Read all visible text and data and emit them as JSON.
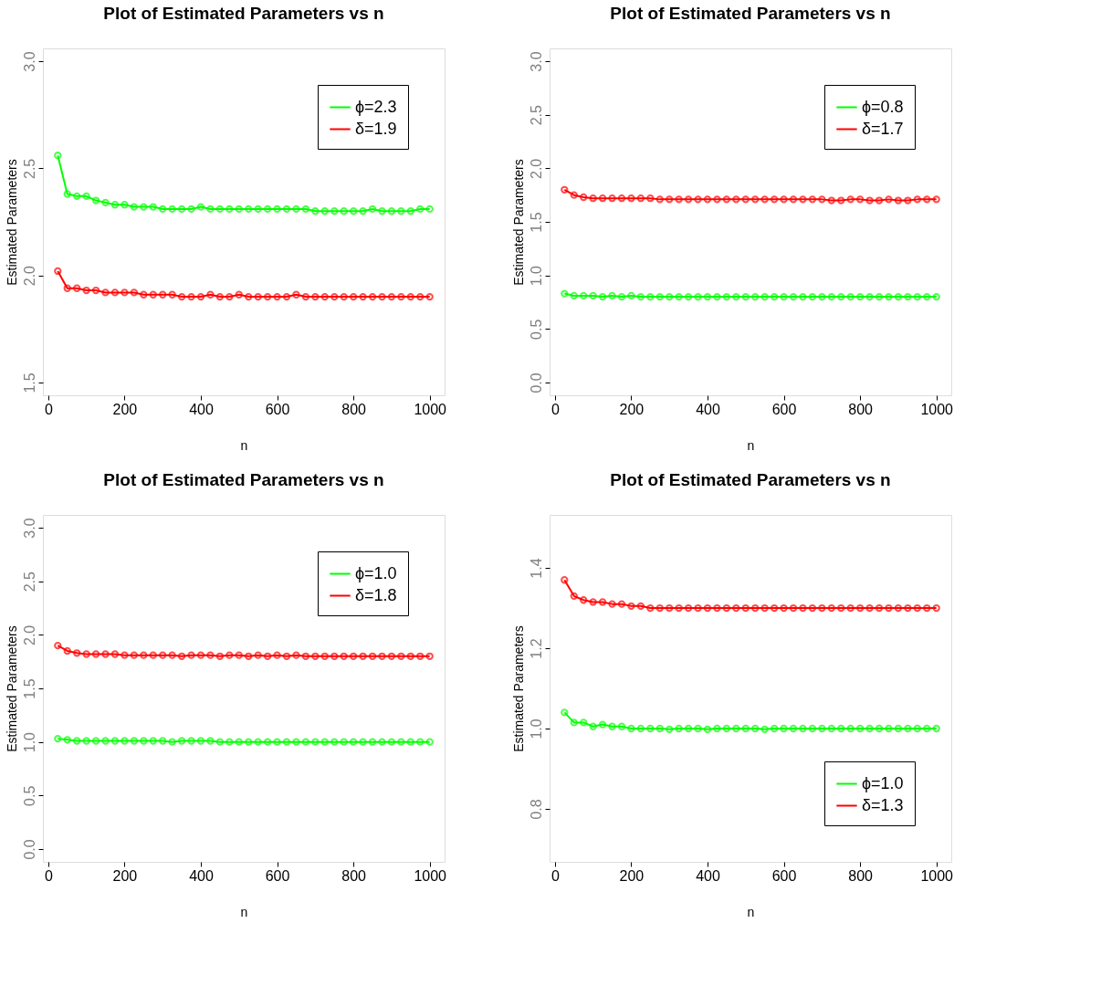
{
  "chart_data": [
    {
      "type": "line",
      "title": "Plot of Estimated Parameters vs n",
      "xlabel": "n",
      "ylabel": "Estimated Parameters",
      "x": [
        25,
        50,
        75,
        100,
        125,
        150,
        175,
        200,
        225,
        250,
        275,
        300,
        325,
        350,
        375,
        400,
        425,
        450,
        475,
        500,
        525,
        550,
        575,
        600,
        625,
        650,
        675,
        700,
        725,
        750,
        775,
        800,
        825,
        850,
        875,
        900,
        925,
        950,
        975,
        1000
      ],
      "xlim": [
        -14,
        1039
      ],
      "xticks": [
        0,
        200,
        400,
        600,
        800,
        1000
      ],
      "ylim": [
        1.44,
        3.06
      ],
      "yticks": [
        1.5,
        {
          "value": 2,
          "label": "2.0"
        },
        2.5,
        {
          "value": 3,
          "label": "3.0"
        }
      ],
      "legend": "top right",
      "marker": "circle",
      "line_style": "solid",
      "grid": false,
      "series": [
        {
          "name": "ϕ=2.3",
          "color": "#00ff00",
          "values": [
            2.56,
            2.38,
            2.37,
            2.37,
            2.35,
            2.34,
            2.33,
            2.33,
            2.32,
            2.32,
            2.32,
            2.31,
            2.31,
            2.31,
            2.31,
            2.32,
            2.31,
            2.31,
            2.31,
            2.31,
            2.31,
            2.31,
            2.31,
            2.31,
            2.31,
            2.31,
            2.31,
            2.3,
            2.3,
            2.3,
            2.3,
            2.3,
            2.3,
            2.31,
            2.3,
            2.3,
            2.3,
            2.3,
            2.31,
            2.31
          ]
        },
        {
          "name": "δ=1.9",
          "color": "#ff0000",
          "values": [
            2.02,
            1.94,
            1.94,
            1.93,
            1.93,
            1.92,
            1.92,
            1.92,
            1.92,
            1.91,
            1.91,
            1.91,
            1.91,
            1.9,
            1.9,
            1.9,
            1.91,
            1.9,
            1.9,
            1.91,
            1.9,
            1.9,
            1.9,
            1.9,
            1.9,
            1.91,
            1.9,
            1.9,
            1.9,
            1.9,
            1.9,
            1.9,
            1.9,
            1.9,
            1.9,
            1.9,
            1.9,
            1.9,
            1.9,
            1.9
          ]
        }
      ]
    },
    {
      "type": "line",
      "title": "Plot of Estimated Parameters vs n",
      "xlabel": "n",
      "ylabel": "Estimated Parameters",
      "x": [
        25,
        50,
        75,
        100,
        125,
        150,
        175,
        200,
        225,
        250,
        275,
        300,
        325,
        350,
        375,
        400,
        425,
        450,
        475,
        500,
        525,
        550,
        575,
        600,
        625,
        650,
        675,
        700,
        725,
        750,
        775,
        800,
        825,
        850,
        875,
        900,
        925,
        950,
        975,
        1000
      ],
      "xlim": [
        -14,
        1039
      ],
      "xticks": [
        0,
        200,
        400,
        600,
        800,
        1000
      ],
      "ylim": [
        -0.12,
        3.12
      ],
      "yticks": [
        {
          "value": 0,
          "label": "0.0"
        },
        0.5,
        {
          "value": 1,
          "label": "1.0"
        },
        1.5,
        {
          "value": 2,
          "label": "2.0"
        },
        2.5,
        {
          "value": 3,
          "label": "3.0"
        }
      ],
      "legend": "top right",
      "marker": "circle",
      "line_style": "solid",
      "grid": false,
      "series": [
        {
          "name": "ϕ=0.8",
          "color": "#00ff00",
          "values": [
            0.83,
            0.81,
            0.81,
            0.81,
            0.8,
            0.81,
            0.8,
            0.81,
            0.8,
            0.8,
            0.8,
            0.8,
            0.8,
            0.8,
            0.8,
            0.8,
            0.8,
            0.8,
            0.8,
            0.8,
            0.8,
            0.8,
            0.8,
            0.8,
            0.8,
            0.8,
            0.8,
            0.8,
            0.8,
            0.8,
            0.8,
            0.8,
            0.8,
            0.8,
            0.8,
            0.8,
            0.8,
            0.8,
            0.8,
            0.8
          ]
        },
        {
          "name": "δ=1.7",
          "color": "#ff0000",
          "values": [
            1.8,
            1.75,
            1.73,
            1.72,
            1.72,
            1.72,
            1.72,
            1.72,
            1.72,
            1.72,
            1.71,
            1.71,
            1.71,
            1.71,
            1.71,
            1.71,
            1.71,
            1.71,
            1.71,
            1.71,
            1.71,
            1.71,
            1.71,
            1.71,
            1.71,
            1.71,
            1.71,
            1.71,
            1.7,
            1.7,
            1.71,
            1.71,
            1.7,
            1.7,
            1.71,
            1.7,
            1.7,
            1.71,
            1.71,
            1.71
          ]
        }
      ]
    },
    {
      "type": "line",
      "title": "Plot of Estimated Parameters vs n",
      "xlabel": "n",
      "ylabel": "Estimated Parameters",
      "x": [
        25,
        50,
        75,
        100,
        125,
        150,
        175,
        200,
        225,
        250,
        275,
        300,
        325,
        350,
        375,
        400,
        425,
        450,
        475,
        500,
        525,
        550,
        575,
        600,
        625,
        650,
        675,
        700,
        725,
        750,
        775,
        800,
        825,
        850,
        875,
        900,
        925,
        950,
        975,
        1000
      ],
      "xlim": [
        -14,
        1039
      ],
      "xticks": [
        0,
        200,
        400,
        600,
        800,
        1000
      ],
      "ylim": [
        -0.12,
        3.12
      ],
      "yticks": [
        {
          "value": 0,
          "label": "0.0"
        },
        0.5,
        {
          "value": 1,
          "label": "1.0"
        },
        1.5,
        {
          "value": 2,
          "label": "2.0"
        },
        2.5,
        {
          "value": 3,
          "label": "3.0"
        }
      ],
      "legend": "top right",
      "marker": "circle",
      "line_style": "solid",
      "grid": false,
      "series": [
        {
          "name": "ϕ=1.0",
          "color": "#00ff00",
          "values": [
            1.03,
            1.02,
            1.01,
            1.01,
            1.01,
            1.01,
            1.01,
            1.01,
            1.01,
            1.01,
            1.01,
            1.01,
            1.0,
            1.01,
            1.01,
            1.01,
            1.01,
            1.0,
            1.0,
            1.0,
            1.0,
            1.0,
            1.0,
            1.0,
            1.0,
            1.0,
            1.0,
            1.0,
            1.0,
            1.0,
            1.0,
            1.0,
            1.0,
            1.0,
            1.0,
            1.0,
            1.0,
            1.0,
            1.0,
            1.0
          ]
        },
        {
          "name": "δ=1.8",
          "color": "#ff0000",
          "values": [
            1.9,
            1.85,
            1.83,
            1.82,
            1.82,
            1.82,
            1.82,
            1.81,
            1.81,
            1.81,
            1.81,
            1.81,
            1.81,
            1.8,
            1.81,
            1.81,
            1.81,
            1.8,
            1.81,
            1.81,
            1.8,
            1.81,
            1.8,
            1.81,
            1.8,
            1.81,
            1.8,
            1.8,
            1.8,
            1.8,
            1.8,
            1.8,
            1.8,
            1.8,
            1.8,
            1.8,
            1.8,
            1.8,
            1.8,
            1.8
          ]
        }
      ]
    },
    {
      "type": "line",
      "title": "Plot of Estimated Parameters vs n",
      "xlabel": "n",
      "ylabel": "Estimated Parameters",
      "x": [
        25,
        50,
        75,
        100,
        125,
        150,
        175,
        200,
        225,
        250,
        275,
        300,
        325,
        350,
        375,
        400,
        425,
        450,
        475,
        500,
        525,
        550,
        575,
        600,
        625,
        650,
        675,
        700,
        725,
        750,
        775,
        800,
        825,
        850,
        875,
        900,
        925,
        950,
        975,
        1000
      ],
      "xlim": [
        -14,
        1039
      ],
      "xticks": [
        0,
        200,
        400,
        600,
        800,
        1000
      ],
      "ylim": [
        0.668,
        1.532
      ],
      "yticks": [
        0.8,
        {
          "value": 1,
          "label": "1.0"
        },
        1.2,
        1.4
      ],
      "legend": "bottom right",
      "marker": "circle",
      "line_style": "solid",
      "grid": false,
      "series": [
        {
          "name": "ϕ=1.0",
          "color": "#00ff00",
          "values": [
            1.04,
            1.015,
            1.015,
            1.005,
            1.01,
            1.005,
            1.005,
            1.0,
            1.0,
            1.0,
            1.0,
            0.998,
            1.0,
            1.0,
            1.0,
            0.998,
            1.0,
            1.0,
            1.0,
            1.0,
            1.0,
            0.998,
            1.0,
            1.0,
            1.0,
            1.0,
            1.0,
            1.0,
            1.0,
            1.0,
            1.0,
            1.0,
            1.0,
            1.0,
            1.0,
            1.0,
            1.0,
            1.0,
            1.0,
            1.0
          ]
        },
        {
          "name": "δ=1.3",
          "color": "#ff0000",
          "values": [
            1.37,
            1.33,
            1.32,
            1.315,
            1.315,
            1.31,
            1.31,
            1.305,
            1.305,
            1.3,
            1.3,
            1.3,
            1.3,
            1.3,
            1.3,
            1.3,
            1.3,
            1.3,
            1.3,
            1.3,
            1.3,
            1.3,
            1.3,
            1.3,
            1.3,
            1.3,
            1.3,
            1.3,
            1.3,
            1.3,
            1.3,
            1.3,
            1.3,
            1.3,
            1.3,
            1.3,
            1.3,
            1.3,
            1.3,
            1.3
          ]
        }
      ]
    }
  ]
}
